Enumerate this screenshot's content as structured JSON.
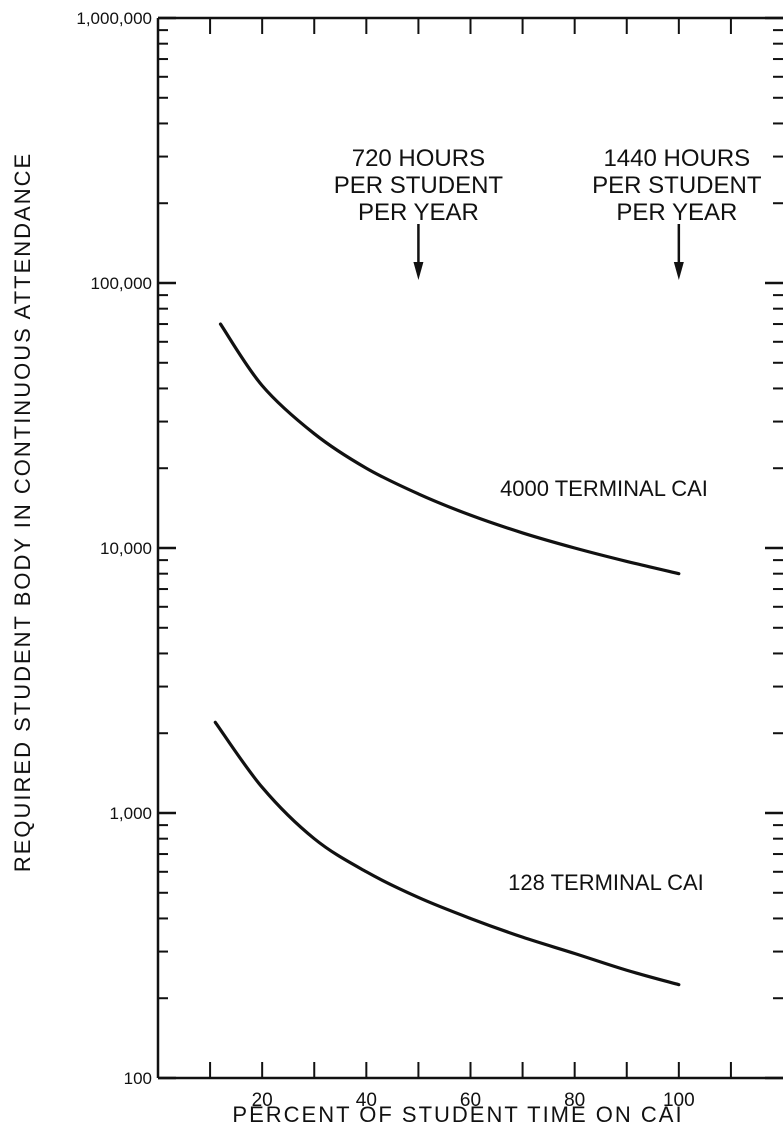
{
  "chart_data": {
    "type": "line",
    "xlabel": "PERCENT OF STUDENT TIME ON CAI",
    "ylabel": "REQUIRED STUDENT BODY IN CONTINUOUS ATTENDANCE",
    "xlim": [
      0,
      120
    ],
    "ylim": [
      100,
      1000000
    ],
    "yscale": "log",
    "grid": false,
    "xticks": [
      20,
      40,
      60,
      80,
      100
    ],
    "xtick_labels": [
      "20",
      "40",
      "60",
      "80",
      "100"
    ],
    "yticks": [
      100,
      1000,
      10000,
      100000,
      1000000
    ],
    "ytick_labels": [
      "100",
      "1,000",
      "10,000",
      "100,000",
      "1,000,000"
    ],
    "series": [
      {
        "name": "4000 TERMINAL CAI",
        "x": [
          12,
          20,
          30,
          40,
          50,
          60,
          70,
          80,
          90,
          100
        ],
        "y": [
          70000,
          41000,
          27000,
          20000,
          16000,
          13300,
          11400,
          10000,
          8900,
          8000
        ]
      },
      {
        "name": "128 TERMINAL CAI",
        "x": [
          11,
          20,
          30,
          40,
          50,
          60,
          70,
          80,
          90,
          100
        ],
        "y": [
          2200,
          1250,
          800,
          600,
          480,
          400,
          340,
          295,
          255,
          225
        ]
      }
    ],
    "annotations": [
      {
        "lines": [
          "720 HOURS",
          "PER STUDENT",
          "PER YEAR"
        ],
        "x": 50
      },
      {
        "lines": [
          "1440 HOURS",
          "PER STUDENT",
          "PER YEAR"
        ],
        "x": 100
      }
    ]
  }
}
